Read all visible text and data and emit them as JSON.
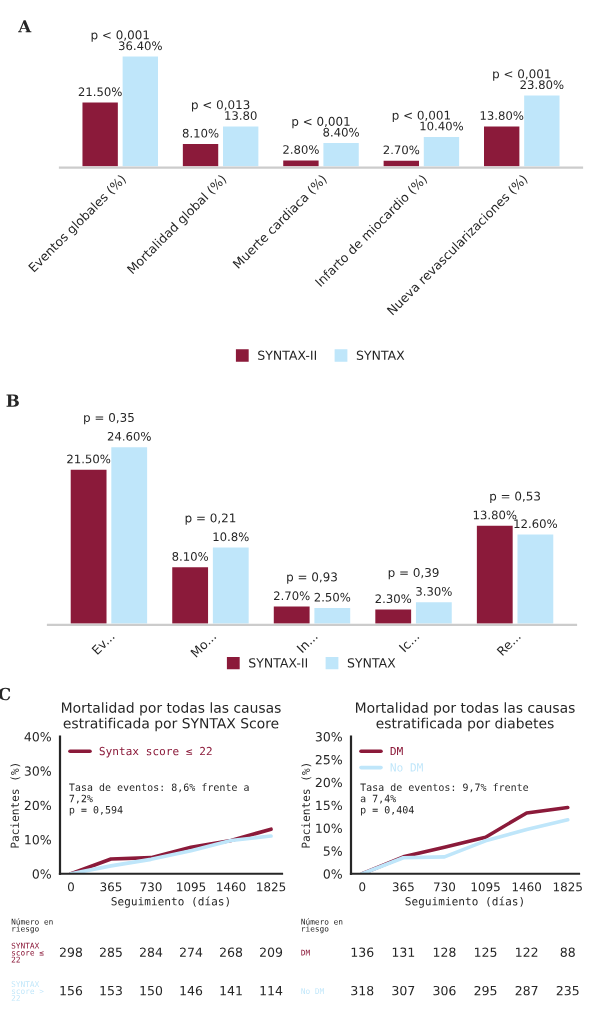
{
  "chart_data": [
    {
      "type": "bar",
      "categories": [
        "Eventos globales (%)",
        "Mortalidad global (%)",
        "Muerte cardiaca (%)",
        "Infarto de miocardio (%)",
        "Nueva revascularizaciones (%)"
      ],
      "series": [
        {
          "name": "SYNTAX-II",
          "color": "#8b1a3a",
          "values": [
            21.5,
            8.1,
            2.8,
            2.7,
            13.8
          ],
          "value_labels": [
            "21.50%",
            "8.10%",
            "2.80%",
            "2.70%",
            "13.80%"
          ]
        },
        {
          "name": "SYNTAX",
          "color": "#bfe6fa",
          "values": [
            36.4,
            13.8,
            8.4,
            10.4,
            23.8
          ],
          "value_labels": [
            "36.40%",
            "13.80",
            "8.40%",
            "10.40%",
            "23.80%"
          ]
        }
      ],
      "annotations": [
        "A",
        "p < 0,001",
        "p < 0,013",
        "p < 0,001",
        "p < 0,001",
        "p < 0,001"
      ],
      "legend": "bottom"
    },
    {
      "type": "bar",
      "categories": [
        "Ev...",
        "Mo...",
        "In...",
        "Ic...",
        "Re..."
      ],
      "series": [
        {
          "name": "SYNTAX-II",
          "color": "#8b1a3a",
          "values": [
            21.5,
            8.1,
            2.7,
            2.3,
            13.8
          ],
          "value_labels": [
            "21.50%",
            "8.10%",
            "2.70%",
            "2.30%",
            "13.80%"
          ]
        },
        {
          "name": "SYNTAX",
          "color": "#bfe6fa",
          "values": [
            24.6,
            10.8,
            2.5,
            3.3,
            12.6
          ],
          "value_labels": [
            "24.60%",
            "10.8%",
            "2.50%",
            "3.30%",
            "12.60%"
          ]
        }
      ],
      "annotations": [
        "B",
        "p = 0,35",
        "p = 0,21",
        "p = 0,93",
        "p = 0,39",
        "p = 0,53"
      ],
      "legend": "bottom"
    },
    {
      "type": "line",
      "title": "Mortalidad por todas las causas\nestratificada por SYNTAX Score",
      "xlabel": "Seguimiento (días)",
      "ylabel": "Pacientes (%)",
      "x": [
        0,
        365,
        730,
        1095,
        1460,
        1825
      ],
      "series": [
        {
          "name": "Syntax score ≤ 22",
          "color": "#8b1a3a",
          "values": [
            0,
            4.3,
            4.7,
            7.7,
            9.7,
            13
          ]
        },
        {
          "color": "#bfe6fa",
          "values": [
            0,
            2.3,
            4.2,
            6.7,
            9.7,
            11
          ]
        }
      ],
      "xlim": [
        -100,
        1925
      ],
      "xticks": [
        0,
        365,
        730,
        1095,
        1460,
        1825
      ],
      "ylim": [
        0,
        40
      ],
      "yticks": [
        {
          "value": 0,
          "label": "0%"
        },
        {
          "value": 10,
          "label": "10%"
        },
        {
          "value": 20,
          "label": "20%"
        },
        {
          "value": 30,
          "label": "30%"
        },
        {
          "value": 40,
          "label": "40%"
        }
      ],
      "annotations": [
        "Tasa de eventos: 8,6% frente a\n7,2%\np = 0,594",
        "Número en\nriesgo",
        "SYNTAX\nscore ≤\n22",
        "298",
        "285",
        "284",
        "274",
        "268",
        "209",
        "SYNTAX\nscore >\n22",
        "156",
        "153",
        "150",
        "146",
        "141",
        "114",
        "C"
      ],
      "legend": "top left",
      "grid": false,
      "marker": "none",
      "line_style": "solid"
    },
    {
      "type": "line",
      "title": "Mortalidad por todas las causas\nestratificada por diabetes",
      "xlabel": "Seguimiento (días)",
      "ylabel": "Pacientes (%)",
      "x": [
        0,
        365,
        730,
        1095,
        1460,
        1825
      ],
      "series": [
        {
          "name": "DM",
          "color": "#8b1a3a",
          "values": [
            0,
            3.7,
            5.8,
            8,
            13.3,
            14.5
          ]
        },
        {
          "name": "No DM",
          "color": "#bfe6fa",
          "values": [
            0,
            3.5,
            3.7,
            7.2,
            9.7,
            11.8
          ]
        }
      ],
      "xlim": [
        -100,
        1925
      ],
      "xticks": [
        0,
        365,
        730,
        1095,
        1460,
        1825
      ],
      "ylim": [
        0,
        30
      ],
      "yticks": [
        {
          "value": 0,
          "label": "0%"
        },
        {
          "value": 5,
          "label": "5%"
        },
        {
          "value": 10,
          "label": "10%"
        },
        {
          "value": 15,
          "label": "15%"
        },
        {
          "value": 20,
          "label": "20%"
        },
        {
          "value": 25,
          "label": "25%"
        },
        {
          "value": 30,
          "label": "30%"
        }
      ],
      "annotations": [
        "Tasa de eventos: 9,7% frente\na 7,4%\np = 0,404",
        "Número en\nriesgo",
        "DM",
        "136",
        "131",
        "128",
        "125",
        "122",
        "88",
        "No DM",
        "318",
        "307",
        "306",
        "295",
        "287",
        "235"
      ],
      "legend": "top left",
      "grid": false,
      "marker": "none",
      "line_style": "solid"
    }
  ]
}
